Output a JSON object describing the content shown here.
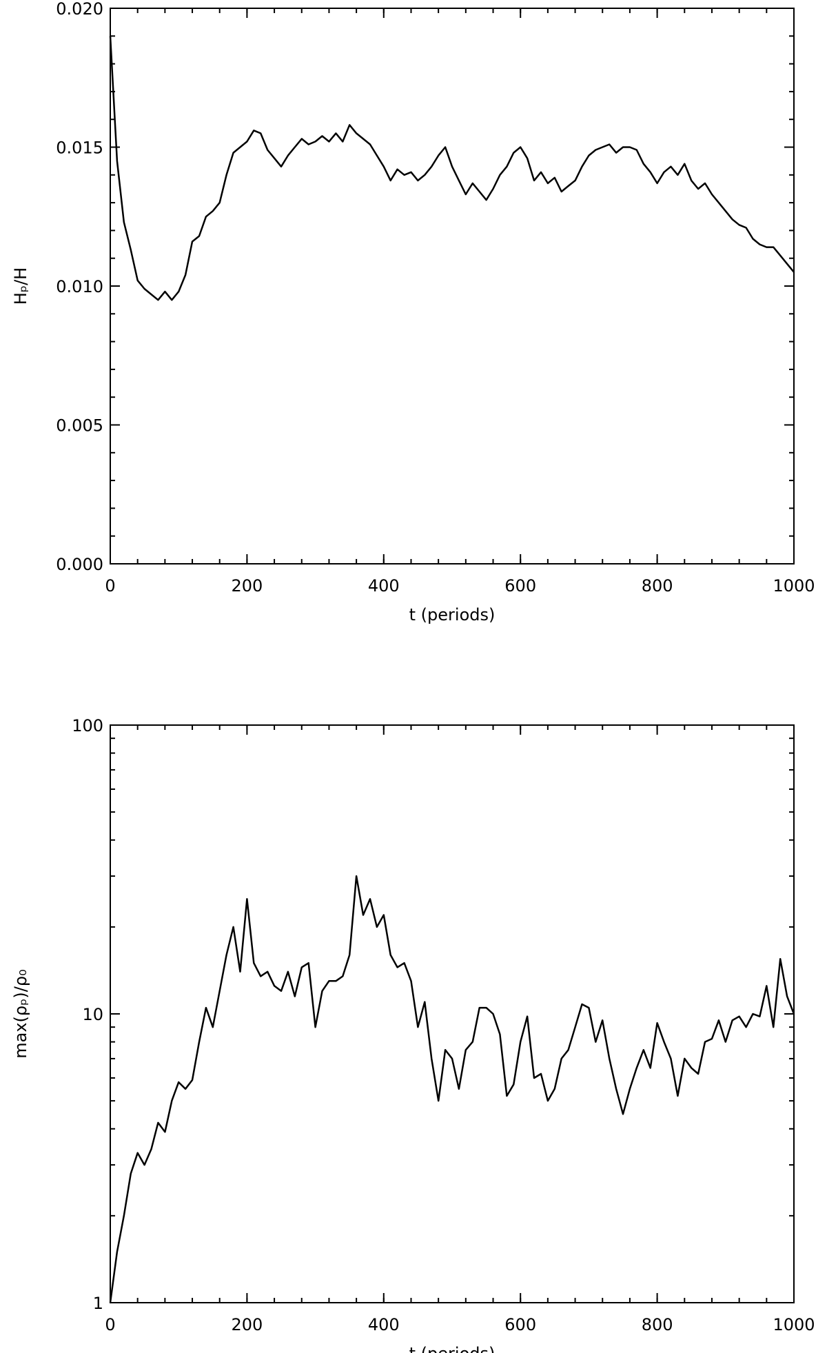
{
  "chart_data": [
    {
      "type": "line",
      "ylabel": "Hₚ/H",
      "xlabel": "t (periods)",
      "xlim": [
        0,
        1000
      ],
      "xticks": [
        0,
        200,
        400,
        600,
        800,
        1000
      ],
      "ylim": [
        0,
        0.02
      ],
      "yticks": [
        {
          "value": 0,
          "label": "0.000"
        },
        0.005,
        {
          "value": 0.01,
          "label": "0.010"
        },
        0.015,
        {
          "value": 0.02,
          "label": "0.020"
        }
      ],
      "log": false,
      "color": "#000000",
      "x": [
        0,
        10,
        20,
        30,
        40,
        50,
        60,
        70,
        80,
        90,
        100,
        110,
        120,
        130,
        140,
        150,
        160,
        170,
        180,
        190,
        200,
        210,
        220,
        230,
        240,
        250,
        260,
        270,
        280,
        290,
        300,
        310,
        320,
        330,
        340,
        350,
        360,
        370,
        380,
        390,
        400,
        410,
        420,
        430,
        440,
        450,
        460,
        470,
        480,
        490,
        500,
        510,
        520,
        530,
        540,
        550,
        560,
        570,
        580,
        590,
        600,
        610,
        620,
        630,
        640,
        650,
        660,
        670,
        680,
        690,
        700,
        710,
        720,
        730,
        740,
        750,
        760,
        770,
        780,
        790,
        800,
        810,
        820,
        830,
        840,
        850,
        860,
        870,
        880,
        890,
        900,
        910,
        920,
        930,
        940,
        950,
        960,
        970,
        980,
        990,
        1000
      ],
      "values": [
        0.019,
        0.0145,
        0.0123,
        0.0113,
        0.0102,
        0.0099,
        0.0097,
        0.0095,
        0.0098,
        0.0095,
        0.0098,
        0.0104,
        0.0116,
        0.0118,
        0.0125,
        0.0127,
        0.013,
        0.014,
        0.0148,
        0.015,
        0.0152,
        0.0156,
        0.0155,
        0.0149,
        0.0146,
        0.0143,
        0.0147,
        0.015,
        0.0153,
        0.0151,
        0.0152,
        0.0154,
        0.0152,
        0.0155,
        0.0152,
        0.0158,
        0.0155,
        0.0153,
        0.0151,
        0.0147,
        0.0143,
        0.0138,
        0.0142,
        0.014,
        0.0141,
        0.0138,
        0.014,
        0.0143,
        0.0147,
        0.015,
        0.0143,
        0.0138,
        0.0133,
        0.0137,
        0.0134,
        0.0131,
        0.0135,
        0.014,
        0.0143,
        0.0148,
        0.015,
        0.0146,
        0.0138,
        0.0141,
        0.0137,
        0.0139,
        0.0134,
        0.0136,
        0.0138,
        0.0143,
        0.0147,
        0.0149,
        0.015,
        0.0151,
        0.0148,
        0.015,
        0.015,
        0.0149,
        0.0144,
        0.0141,
        0.0137,
        0.0141,
        0.0143,
        0.014,
        0.0144,
        0.0138,
        0.0135,
        0.0137,
        0.0133,
        0.013,
        0.0127,
        0.0124,
        0.0122,
        0.0121,
        0.0117,
        0.0115,
        0.0114,
        0.0114,
        0.0111,
        0.0108,
        0.0105
      ]
    },
    {
      "type": "line",
      "ylabel": "max(ρₚ)/ρ₀",
      "xlabel": "t (periods)",
      "xlim": [
        0,
        1000
      ],
      "xticks": [
        0,
        200,
        400,
        600,
        800,
        1000
      ],
      "ylim": [
        1,
        100
      ],
      "yticks": [
        1,
        10,
        100
      ],
      "log": true,
      "color": "#000000",
      "x": [
        0,
        10,
        20,
        30,
        40,
        50,
        60,
        70,
        80,
        90,
        100,
        110,
        120,
        130,
        140,
        150,
        160,
        170,
        180,
        190,
        200,
        210,
        220,
        230,
        240,
        250,
        260,
        270,
        280,
        290,
        300,
        310,
        320,
        330,
        340,
        350,
        360,
        370,
        380,
        390,
        400,
        410,
        420,
        430,
        440,
        450,
        460,
        470,
        480,
        490,
        500,
        510,
        520,
        530,
        540,
        550,
        560,
        570,
        580,
        590,
        600,
        610,
        620,
        630,
        640,
        650,
        660,
        670,
        680,
        690,
        700,
        710,
        720,
        730,
        740,
        750,
        760,
        770,
        780,
        790,
        800,
        810,
        820,
        830,
        840,
        850,
        860,
        870,
        880,
        890,
        900,
        910,
        920,
        930,
        940,
        950,
        960,
        970,
        980,
        990,
        1000
      ],
      "values": [
        1.0,
        1.5,
        2.0,
        2.8,
        3.3,
        3.0,
        3.4,
        4.2,
        3.9,
        5.0,
        5.8,
        5.5,
        5.9,
        8.0,
        10.5,
        9.0,
        12.0,
        16.0,
        20.0,
        14.0,
        25.0,
        15.0,
        13.5,
        14.0,
        12.5,
        12.0,
        14.0,
        11.5,
        14.5,
        15.0,
        9.0,
        12.0,
        13.0,
        13.0,
        13.5,
        16.0,
        30.0,
        22.0,
        25.0,
        20.0,
        22.0,
        16.0,
        14.5,
        15.0,
        13.0,
        9.0,
        11.0,
        7.0,
        5.0,
        7.5,
        7.0,
        5.5,
        7.5,
        8.0,
        10.5,
        10.5,
        10.0,
        8.5,
        5.2,
        5.7,
        8.0,
        9.8,
        6.0,
        6.2,
        5.0,
        5.5,
        7.0,
        7.5,
        9.0,
        10.8,
        10.5,
        8.0,
        9.5,
        7.0,
        5.5,
        4.5,
        5.5,
        6.5,
        7.5,
        6.5,
        9.3,
        8.0,
        7.0,
        5.2,
        7.0,
        6.5,
        6.2,
        8.0,
        8.2,
        9.5,
        8.0,
        9.5,
        9.8,
        9.0,
        10.0,
        9.8,
        12.5,
        9.0,
        15.5,
        11.5,
        10.0
      ]
    }
  ]
}
